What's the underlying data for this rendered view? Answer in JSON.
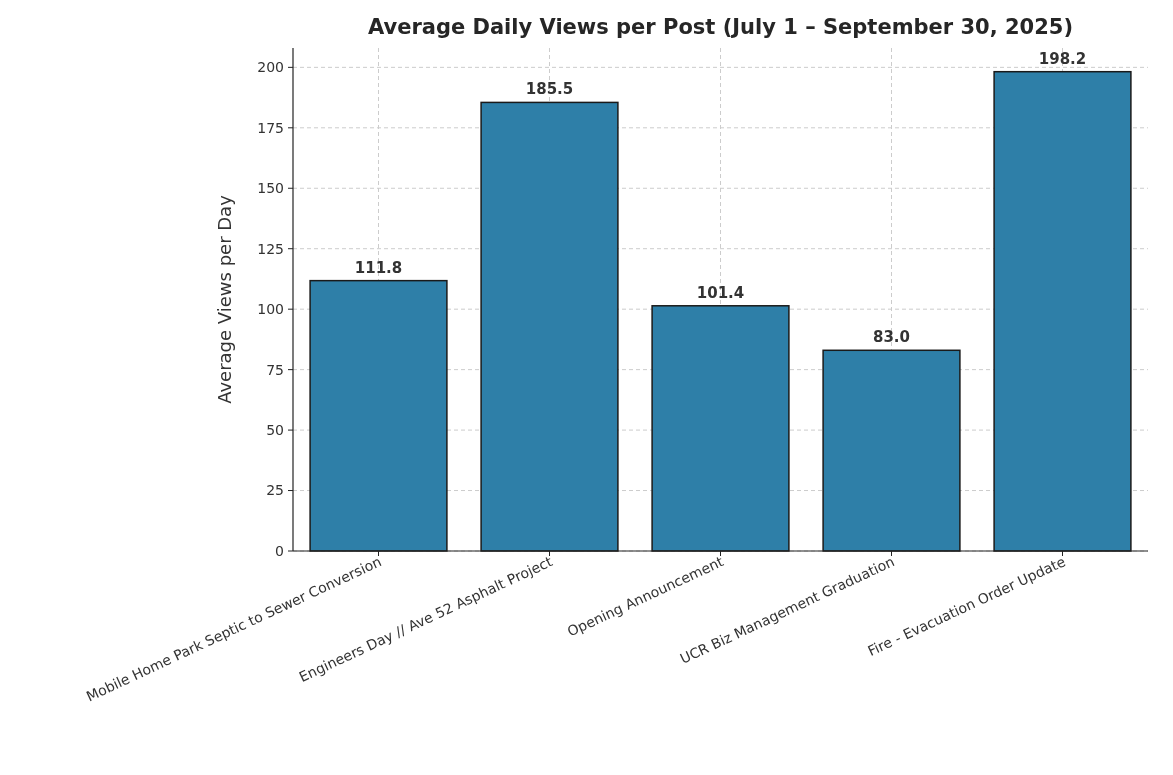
{
  "chart_data": {
    "type": "bar",
    "title": "Average Daily Views per Post (July 1 – September 30, 2025)",
    "ylabel": "Average Views per Day",
    "categories": [
      "Mobile Home Park Septic to Sewer Conversion",
      "Engineers Day // Ave 52 Asphalt Project",
      "Opening Announcement",
      "UCR Biz Management Graduation",
      "Fire - Evacuation Order Update"
    ],
    "values": [
      111.8,
      185.5,
      101.4,
      83.0,
      198.2
    ],
    "value_labels": [
      "111.8",
      "185.5",
      "101.4",
      "83.0",
      "198.2"
    ],
    "color": "#2e7fa8",
    "ylim": [
      0,
      208
    ],
    "yticks": [
      0,
      25,
      50,
      75,
      100,
      125,
      150,
      175,
      200
    ],
    "grid": true
  }
}
